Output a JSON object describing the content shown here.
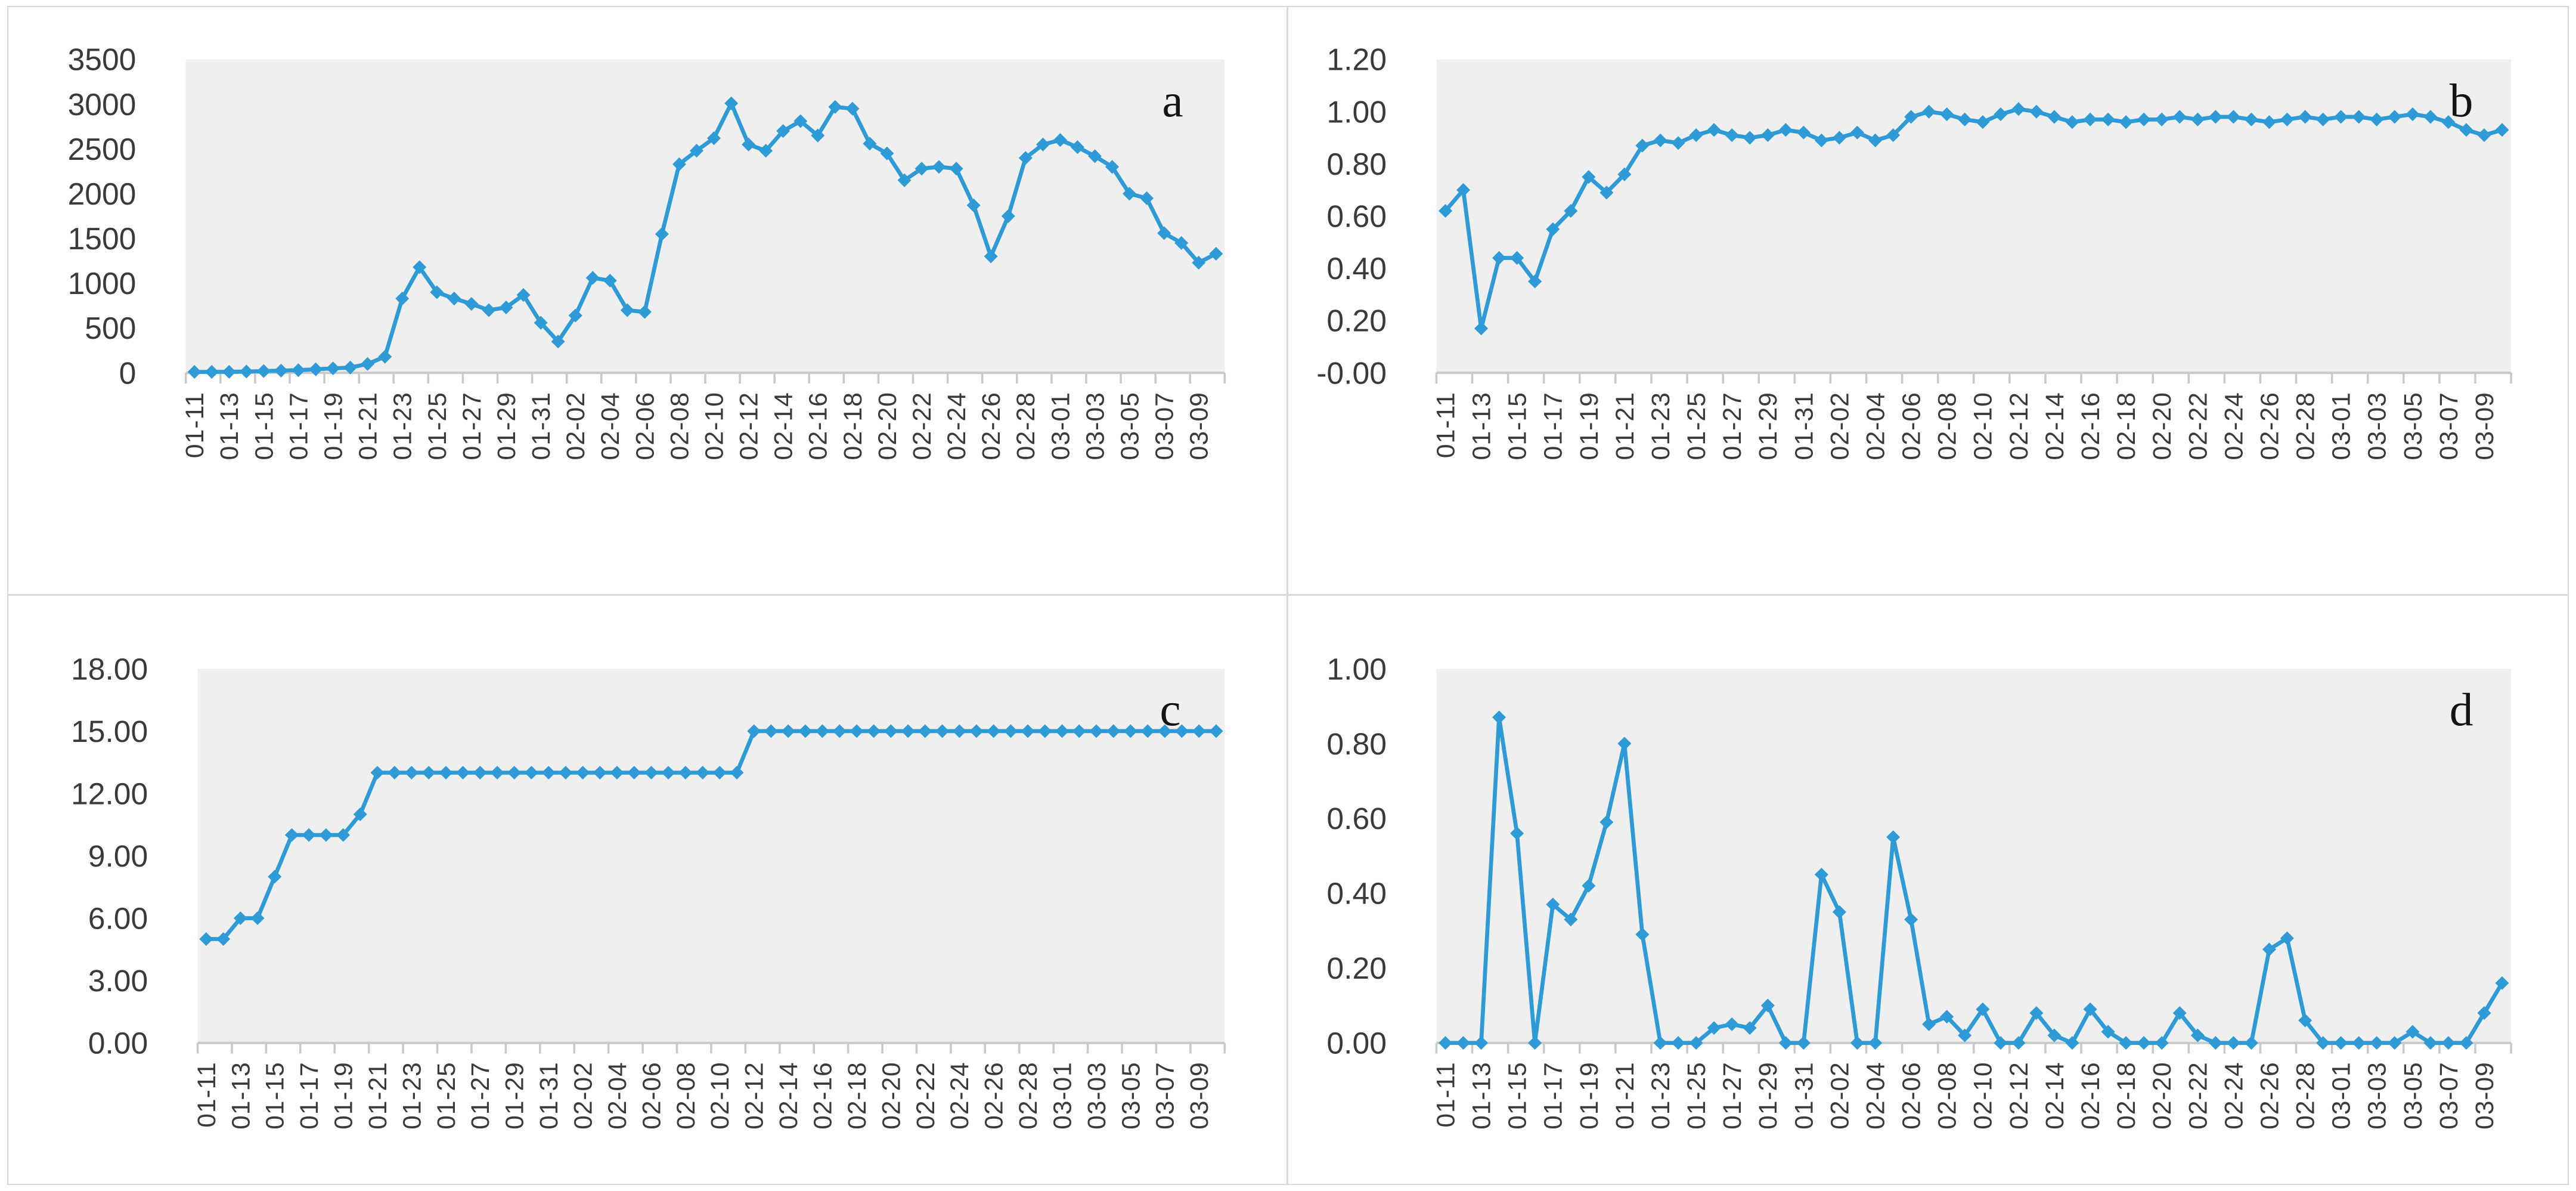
{
  "figure": {
    "colors": {
      "line": "#2E9BD6",
      "plot_background": "#EFEFEF",
      "axis": "#C9C9C9",
      "tick_label": "#3A3A3A",
      "panel_letter": "#141414",
      "panel_border": "#D9D9D9",
      "background": "#FFFFFF"
    }
  },
  "chart_data": {
    "type": "line",
    "layout": "2x2 panel grid, diamond markers, no gridlines, light gray plot area, x labels rotated 90deg",
    "x": [
      "01-11",
      "01-12",
      "01-13",
      "01-14",
      "01-15",
      "01-16",
      "01-17",
      "01-18",
      "01-19",
      "01-20",
      "01-21",
      "01-22",
      "01-23",
      "01-24",
      "01-25",
      "01-26",
      "01-27",
      "01-28",
      "01-29",
      "01-30",
      "01-31",
      "02-01",
      "02-02",
      "02-03",
      "02-04",
      "02-05",
      "02-06",
      "02-07",
      "02-08",
      "02-09",
      "02-10",
      "02-11",
      "02-12",
      "02-13",
      "02-14",
      "02-15",
      "02-16",
      "02-17",
      "02-18",
      "02-19",
      "02-20",
      "02-21",
      "02-22",
      "02-23",
      "02-24",
      "02-25",
      "02-26",
      "02-27",
      "02-28",
      "02-29",
      "03-01",
      "03-02",
      "03-03",
      "03-04",
      "03-05",
      "03-06",
      "03-07",
      "03-08",
      "03-09",
      "03-10"
    ],
    "x_tick_labels": [
      "01-11",
      "01-13",
      "01-15",
      "01-17",
      "01-19",
      "01-21",
      "01-23",
      "01-25",
      "01-27",
      "01-29",
      "01-31",
      "02-02",
      "02-04",
      "02-06",
      "02-08",
      "02-10",
      "02-12",
      "02-14",
      "02-16",
      "02-18",
      "02-20",
      "02-22",
      "02-24",
      "02-26",
      "02-28",
      "03-01",
      "03-03",
      "03-05",
      "03-07",
      "03-09"
    ],
    "panels": [
      {
        "id": "a",
        "panel_label": "a",
        "y_axis": {
          "min": 0,
          "max": 3500,
          "step": 500,
          "decimals": 0
        },
        "series": [
          {
            "name": "a",
            "values": [
              10,
              10,
              12,
              15,
              20,
              25,
              30,
              40,
              50,
              60,
              100,
              180,
              830,
              1180,
              900,
              830,
              770,
              700,
              730,
              870,
              560,
              350,
              640,
              1060,
              1030,
              700,
              680,
              1550,
              2330,
              2480,
              2620,
              3010,
              2550,
              2480,
              2700,
              2810,
              2650,
              2970,
              2950,
              2560,
              2450,
              2150,
              2280,
              2300,
              2280,
              1870,
              1300,
              1750,
              2400,
              2550,
              2600,
              2520,
              2420,
              2300,
              2000,
              1950,
              1560,
              1450,
              1230,
              1330
            ]
          }
        ]
      },
      {
        "id": "b",
        "panel_label": "b",
        "y_axis": {
          "min": 0,
          "max": 1.2,
          "step": 0.2,
          "decimals": 2
        },
        "series": [
          {
            "name": "b",
            "values": [
              0.62,
              0.7,
              0.17,
              0.44,
              0.44,
              0.35,
              0.55,
              0.62,
              0.75,
              0.69,
              0.76,
              0.87,
              0.89,
              0.88,
              0.91,
              0.93,
              0.91,
              0.9,
              0.91,
              0.93,
              0.92,
              0.89,
              0.9,
              0.92,
              0.89,
              0.91,
              0.98,
              1.0,
              0.99,
              0.97,
              0.96,
              0.99,
              1.01,
              1.0,
              0.98,
              0.96,
              0.97,
              0.97,
              0.96,
              0.97,
              0.97,
              0.98,
              0.97,
              0.98,
              0.98,
              0.97,
              0.96,
              0.97,
              0.98,
              0.97,
              0.98,
              0.98,
              0.97,
              0.98,
              0.99,
              0.98,
              0.96,
              0.93,
              0.91,
              0.93
            ]
          }
        ]
      },
      {
        "id": "c",
        "panel_label": "c",
        "y_axis": {
          "min": 0,
          "max": 18.0,
          "step": 3.0,
          "decimals": 2
        },
        "series": [
          {
            "name": "c",
            "values": [
              5,
              5,
              6,
              6,
              8,
              10,
              10,
              10,
              10,
              11,
              13,
              13,
              13,
              13,
              13,
              13,
              13,
              13,
              13,
              13,
              13,
              13,
              13,
              13,
              13,
              13,
              13,
              13,
              13,
              13,
              13,
              13,
              15,
              15,
              15,
              15,
              15,
              15,
              15,
              15,
              15,
              15,
              15,
              15,
              15,
              15,
              15,
              15,
              15,
              15,
              15,
              15,
              15,
              15,
              15,
              15,
              15,
              15,
              15,
              15
            ]
          }
        ]
      },
      {
        "id": "d",
        "panel_label": "d",
        "y_axis": {
          "min": 0,
          "max": 1.0,
          "step": 0.2,
          "decimals": 2
        },
        "series": [
          {
            "name": "d",
            "values": [
              0,
              0,
              0,
              0.87,
              0.56,
              0,
              0.37,
              0.33,
              0.42,
              0.59,
              0.8,
              0.29,
              0,
              0,
              0,
              0.04,
              0.05,
              0.04,
              0.1,
              0,
              0,
              0.45,
              0.35,
              0,
              0,
              0.55,
              0.33,
              0.05,
              0.07,
              0.02,
              0.09,
              0,
              0,
              0.08,
              0.02,
              0,
              0.09,
              0.03,
              0,
              0,
              0,
              0.08,
              0.02,
              0,
              0,
              0,
              0.25,
              0.28,
              0.06,
              0,
              0,
              0,
              0,
              0,
              0.03,
              0,
              0,
              0,
              0.08,
              0.16
            ]
          }
        ]
      }
    ]
  }
}
